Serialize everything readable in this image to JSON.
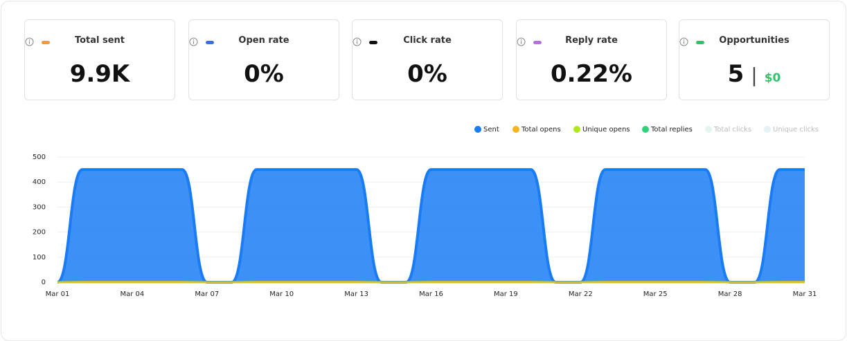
{
  "cards": [
    {
      "label": "Total sent",
      "value": "9.9K",
      "color": "#f29a38"
    },
    {
      "label": "Open rate",
      "value": "0%",
      "color": "#3b6fe0"
    },
    {
      "label": "Click rate",
      "value": "0%",
      "color": "#111111"
    },
    {
      "label": "Reply rate",
      "value": "0.22%",
      "color": "#b36ee0"
    },
    {
      "label": "Opportunities",
      "value": "5",
      "secondary": "$0",
      "color": "#2ec46a"
    }
  ],
  "chart_data": {
    "type": "area",
    "categories": [
      "Mar 01",
      null,
      null,
      "Mar 04",
      null,
      null,
      "Mar 07",
      null,
      null,
      "Mar 10",
      null,
      null,
      "Mar 13",
      null,
      null,
      "Mar 16",
      null,
      null,
      "Mar 19",
      null,
      null,
      "Mar 22",
      null,
      null,
      "Mar 25",
      null,
      null,
      "Mar 28",
      null,
      null,
      "Mar 31"
    ],
    "series": [
      {
        "name": "Sent",
        "color": "#1a7cf5",
        "values": [
          0,
          450,
          450,
          450,
          450,
          450,
          0,
          0,
          450,
          450,
          450,
          450,
          450,
          0,
          0,
          450,
          450,
          450,
          450,
          450,
          0,
          0,
          450,
          450,
          450,
          450,
          450,
          0,
          0,
          450,
          450
        ]
      },
      {
        "name": "Total opens",
        "color": "#f5b51b",
        "values": [
          0,
          0,
          0,
          0,
          0,
          0,
          0,
          0,
          0,
          0,
          0,
          0,
          0,
          0,
          0,
          0,
          0,
          0,
          0,
          0,
          0,
          0,
          0,
          0,
          0,
          0,
          0,
          0,
          0,
          0,
          0
        ]
      },
      {
        "name": "Unique opens",
        "color": "#b4e61e",
        "values": [
          0,
          0,
          0,
          0,
          0,
          0,
          0,
          0,
          0,
          0,
          0,
          0,
          0,
          0,
          0,
          0,
          0,
          0,
          0,
          0,
          0,
          0,
          0,
          0,
          0,
          0,
          0,
          0,
          0,
          0,
          0
        ]
      },
      {
        "name": "Total replies",
        "color": "#2ed47a",
        "values": [
          0,
          1,
          1,
          1,
          1,
          1,
          0,
          0,
          1,
          1,
          1,
          1,
          1,
          0,
          0,
          1,
          1,
          1,
          1,
          1,
          0,
          0,
          1,
          1,
          1,
          1,
          1,
          0,
          0,
          1,
          1
        ]
      },
      {
        "name": "Total clicks",
        "color": "#e3f5ee",
        "hidden": true,
        "values": [
          0,
          0,
          0,
          0,
          0,
          0,
          0,
          0,
          0,
          0,
          0,
          0,
          0,
          0,
          0,
          0,
          0,
          0,
          0,
          0,
          0,
          0,
          0,
          0,
          0,
          0,
          0,
          0,
          0,
          0,
          0
        ]
      },
      {
        "name": "Unique clicks",
        "color": "#e2f2f7",
        "hidden": true,
        "values": [
          0,
          0,
          0,
          0,
          0,
          0,
          0,
          0,
          0,
          0,
          0,
          0,
          0,
          0,
          0,
          0,
          0,
          0,
          0,
          0,
          0,
          0,
          0,
          0,
          0,
          0,
          0,
          0,
          0,
          0,
          0
        ]
      }
    ],
    "ylim": [
      0,
      500
    ],
    "yticks": [
      0,
      100,
      200,
      300,
      400,
      500
    ],
    "grid": true
  }
}
